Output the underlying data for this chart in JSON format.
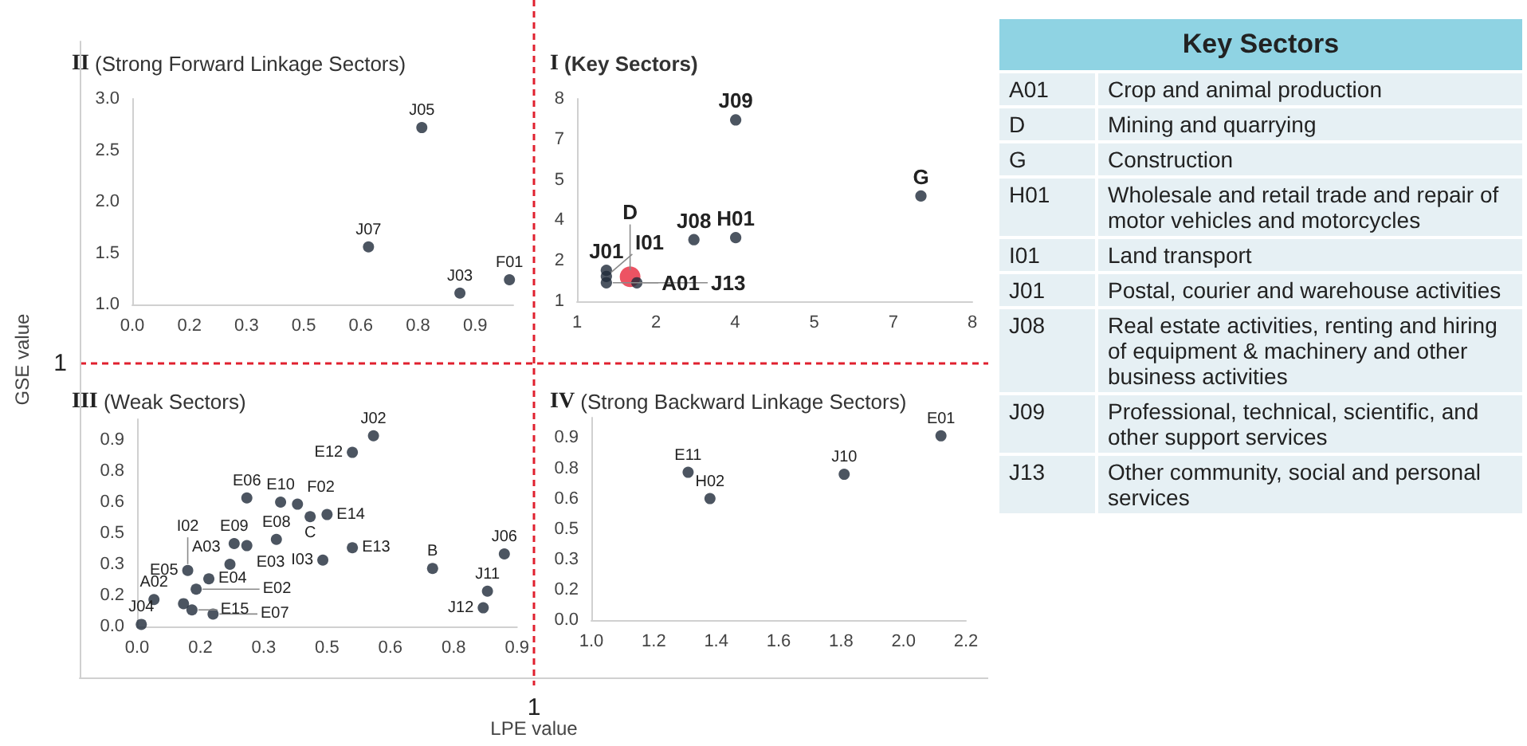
{
  "chart_data": [
    {
      "type": "other",
      "xlabel": "LPE value",
      "ylabel": "GSE value",
      "annotations": [
        "1",
        "1"
      ]
    },
    {
      "type": "scatter",
      "title": "II (Strong Forward Linkage Sectors)",
      "xlim": [
        0,
        1
      ],
      "ylim": [
        1,
        3
      ],
      "xticks": [
        {
          "value": 0,
          "label": "0.0"
        },
        {
          "value": 0.15,
          "label": "0.2"
        },
        0.3,
        {
          "value": 0.45,
          "label": "0.5"
        },
        0.6,
        {
          "value": 0.75,
          "label": "0.8"
        },
        0.9
      ],
      "yticks": [
        {
          "value": 1,
          "label": "1.0"
        },
        1.5,
        {
          "value": 2,
          "label": "2.0"
        },
        2.5,
        {
          "value": 3,
          "label": "3.0"
        }
      ],
      "grid": false,
      "marker": "circle",
      "x": [
        0.76,
        0.62,
        0.86,
        0.99
      ],
      "values": [
        2.72,
        1.56,
        1.11,
        1.24
      ],
      "color": "#1f2a3a",
      "annotations": [
        {
          "text": "J05",
          "x": 0.76,
          "y": 2.72
        },
        {
          "text": "J07",
          "x": 0.62,
          "y": 1.56
        },
        {
          "text": "J03",
          "x": 0.86,
          "y": 1.11
        },
        {
          "text": "F01",
          "x": 0.99,
          "y": 1.24
        }
      ]
    },
    {
      "type": "scatter",
      "title": "I (Key Sectors)",
      "xlim": [
        1,
        8
      ],
      "ylim": [
        1,
        8
      ],
      "xticks": [
        1,
        {
          "value": 2.4,
          "label": "2"
        },
        {
          "value": 3.8,
          "label": "4"
        },
        {
          "value": 5.2,
          "label": "5"
        },
        {
          "value": 6.6,
          "label": "7"
        },
        8
      ],
      "yticks": [
        1,
        {
          "value": 2.4,
          "label": "2"
        },
        {
          "value": 3.8,
          "label": "4"
        },
        {
          "value": 5.2,
          "label": "5"
        },
        {
          "value": 6.6,
          "label": "7"
        },
        8
      ],
      "grid": false,
      "marker": "circle",
      "x": [
        3.81,
        7.09,
        3.81,
        3.07,
        1.52,
        1.52,
        1.52,
        1.94,
        2.06
      ],
      "values": [
        7.27,
        4.64,
        3.2,
        3.13,
        2.07,
        1.86,
        1.64,
        1.85,
        1.64
      ],
      "colors": [
        "#1f2a3a",
        "#1f2a3a",
        "#1f2a3a",
        "#1f2a3a",
        "#1f2a3a",
        "#1f2a3a",
        "#1f2a3a",
        "#e8283c",
        "#1f2a3a"
      ],
      "sizes": [
        0.3,
        0.3,
        0.3,
        0.3,
        0.3,
        0.3,
        0.3,
        1,
        0.3
      ],
      "annotations": [
        {
          "text": "J09",
          "x": 3.81,
          "y": 7.27
        },
        {
          "text": "G",
          "x": 7.09,
          "y": 4.64
        },
        {
          "text": "H01",
          "x": 3.81,
          "y": 3.2
        },
        {
          "text": "J08",
          "x": 3.07,
          "y": 3.13
        },
        {
          "text": "J01",
          "x": 1.52,
          "y": 2.07
        },
        {
          "text": "I01",
          "x": 1.52,
          "y": 1.86
        },
        {
          "text": "A01",
          "x": 1.52,
          "y": 1.64
        },
        {
          "text": "D",
          "x": 1.94,
          "y": 1.85
        },
        {
          "text": "J13",
          "x": 2.06,
          "y": 1.64
        }
      ]
    },
    {
      "type": "scatter",
      "title": "III (Weak Sectors)",
      "xlim": [
        0,
        0.9
      ],
      "ylim": [
        0,
        1
      ],
      "xticks": [
        {
          "value": 0,
          "label": "0.0"
        },
        {
          "value": 0.15,
          "label": "0.2"
        },
        0.3,
        {
          "value": 0.45,
          "label": "0.5"
        },
        0.6,
        {
          "value": 0.75,
          "label": "0.8"
        },
        0.9
      ],
      "yticks": [
        {
          "value": 0,
          "label": "0.0"
        },
        {
          "value": 0.15,
          "label": "0.2"
        },
        0.3,
        {
          "value": 0.45,
          "label": "0.5"
        },
        0.6,
        {
          "value": 0.75,
          "label": "0.8"
        },
        0.9
      ],
      "grid": false,
      "marker": "circle",
      "x": [
        0.56,
        0.51,
        0.26,
        0.34,
        0.38,
        0.41,
        0.45,
        0.33,
        0.23,
        0.26,
        0.44,
        0.51,
        0.7,
        0.87,
        0.83,
        0.82,
        0.22,
        0.17,
        0.12,
        0.14,
        0.11,
        0.13,
        0.18,
        0.04,
        0.01
      ],
      "values": [
        0.92,
        0.84,
        0.62,
        0.6,
        0.59,
        0.53,
        0.54,
        0.42,
        0.4,
        0.39,
        0.32,
        0.38,
        0.28,
        0.35,
        0.17,
        0.09,
        0.3,
        0.23,
        0.27,
        0.18,
        0.11,
        0.08,
        0.06,
        0.13,
        0.01
      ],
      "color": "#1f2a3a",
      "annotations": [
        {
          "text": "J02",
          "x": 0.56,
          "y": 0.92
        },
        {
          "text": "E12",
          "x": 0.51,
          "y": 0.84
        },
        {
          "text": "E06",
          "x": 0.26,
          "y": 0.62
        },
        {
          "text": "E10",
          "x": 0.34,
          "y": 0.6
        },
        {
          "text": "F02",
          "x": 0.38,
          "y": 0.59
        },
        {
          "text": "C",
          "x": 0.41,
          "y": 0.53
        },
        {
          "text": "E14",
          "x": 0.45,
          "y": 0.54
        },
        {
          "text": "E08",
          "x": 0.33,
          "y": 0.42
        },
        {
          "text": "E09",
          "x": 0.23,
          "y": 0.4
        },
        {
          "text": "E03",
          "x": 0.26,
          "y": 0.39
        },
        {
          "text": "I03",
          "x": 0.44,
          "y": 0.32
        },
        {
          "text": "E13",
          "x": 0.51,
          "y": 0.38
        },
        {
          "text": "B",
          "x": 0.7,
          "y": 0.28
        },
        {
          "text": "J06",
          "x": 0.87,
          "y": 0.35
        },
        {
          "text": "J11",
          "x": 0.83,
          "y": 0.17
        },
        {
          "text": "J12",
          "x": 0.82,
          "y": 0.09
        },
        {
          "text": "A03",
          "x": 0.22,
          "y": 0.3
        },
        {
          "text": "E04",
          "x": 0.17,
          "y": 0.23
        },
        {
          "text": "E05",
          "x": 0.12,
          "y": 0.27
        },
        {
          "text": "I02",
          "x": 0.12,
          "y": 0.27
        },
        {
          "text": "E02",
          "x": 0.14,
          "y": 0.18
        },
        {
          "text": "E15",
          "x": 0.13,
          "y": 0.08
        },
        {
          "text": "E07",
          "x": 0.18,
          "y": 0.06
        },
        {
          "text": "A02",
          "x": 0.04,
          "y": 0.13
        },
        {
          "text": "J04",
          "x": 0.01,
          "y": 0.01
        }
      ]
    },
    {
      "type": "scatter",
      "title": "IV (Strong Backward Linkage Sectors)",
      "xlim": [
        1,
        2.2
      ],
      "ylim": [
        0,
        1
      ],
      "xticks": [
        {
          "value": 1,
          "label": "1.0"
        },
        1.2,
        1.4,
        1.6,
        1.8,
        {
          "value": 2,
          "label": "2.0"
        },
        2.2
      ],
      "yticks": [
        {
          "value": 0,
          "label": "0.0"
        },
        {
          "value": 0.15,
          "label": "0.2"
        },
        0.3,
        {
          "value": 0.45,
          "label": "0.5"
        },
        0.6,
        {
          "value": 0.75,
          "label": "0.8"
        },
        0.9
      ],
      "grid": false,
      "marker": "circle",
      "x": [
        1.31,
        1.38,
        1.81,
        2.12
      ],
      "values": [
        0.73,
        0.6,
        0.72,
        0.91
      ],
      "color": "#1f2a3a",
      "annotations": [
        {
          "text": "E11",
          "x": 1.31,
          "y": 0.73
        },
        {
          "text": "H02",
          "x": 1.38,
          "y": 0.6
        },
        {
          "text": "J10",
          "x": 1.81,
          "y": 0.72
        },
        {
          "text": "E01",
          "x": 2.12,
          "y": 0.91
        }
      ]
    },
    {
      "type": "other",
      "title": "Key Sectors",
      "annotations": [
        "A01",
        "Crop and animal production",
        "D",
        "Mining and quarrying",
        "G",
        "Construction",
        "H01",
        "Wholesale and retail trade and repair of motor vehicles and motorcycles",
        "I01",
        "Land transport",
        "J01",
        "Postal, courier and warehouse activities",
        "J08",
        "Real estate activities, renting and hiring of equipment & machinery and other business activities",
        "J09",
        "Professional, technical, scientific, and other support services",
        "J13",
        "Other community, social and personal services"
      ]
    }
  ]
}
